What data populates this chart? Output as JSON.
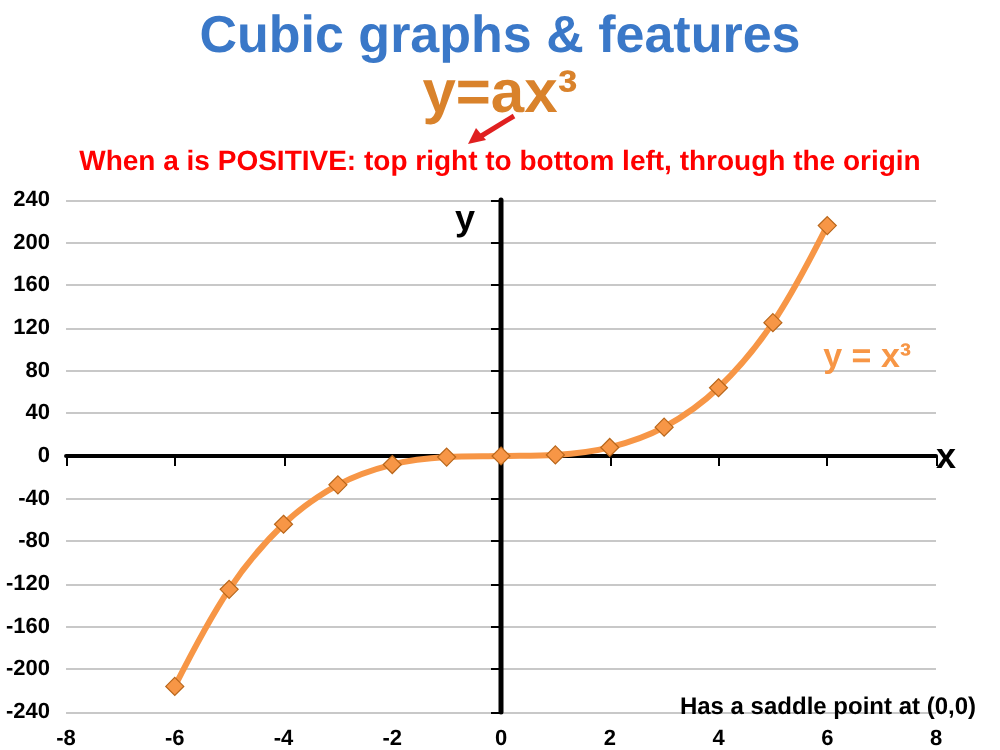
{
  "chart_data": {
    "type": "line",
    "title": "Cubic graphs & features",
    "subtitle": "y=ax³",
    "xlabel": "x",
    "ylabel": "y",
    "annotations": [
      "When a is POSITIVE: top right to bottom left, through the origin",
      "Has a saddle point at (0,0)"
    ],
    "x": [
      -6,
      -5,
      -4,
      -3,
      -2,
      -1,
      0,
      1,
      2,
      3,
      4,
      5,
      6
    ],
    "series": [
      {
        "name": "y = x³",
        "color": "#f79646",
        "values": [
          -216,
          -125,
          -64,
          -27,
          -8,
          -1,
          0,
          1,
          8,
          27,
          64,
          125,
          216
        ]
      }
    ],
    "xlim": [
      -8,
      8
    ],
    "xticks": [
      -8,
      -6,
      -4,
      -2,
      0,
      2,
      4,
      6,
      8
    ],
    "ylim": [
      -240,
      240
    ],
    "yticks": [
      -240,
      -200,
      -160,
      -120,
      -80,
      -40,
      0,
      40,
      80,
      120,
      160,
      200,
      240
    ],
    "grid": "y",
    "marker": "diamond",
    "line_style": "solid",
    "legend": false
  }
}
